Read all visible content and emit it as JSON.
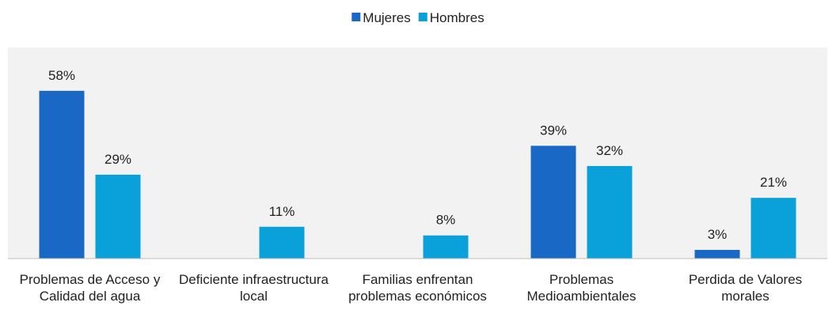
{
  "chart_data": {
    "type": "bar",
    "categories": [
      "Problemas de Acceso y Calidad del agua",
      "Deficiente infraestructura local",
      "Familias enfrentan problemas económicos",
      "Problemas Medioambientales",
      "Perdida de Valores morales"
    ],
    "series": [
      {
        "name": "Mujeres",
        "color": "#1a68c6",
        "values": [
          58,
          null,
          null,
          39,
          3
        ],
        "value_labels": [
          "58%",
          null,
          null,
          "39%",
          "3%"
        ]
      },
      {
        "name": "Hombres",
        "color": "#0aa0da",
        "values": [
          29,
          11,
          8,
          32,
          21
        ],
        "value_labels": [
          "29%",
          "11%",
          "8%",
          "32%",
          "21%"
        ]
      }
    ],
    "ylim": [
      0,
      73
    ],
    "legend": "top"
  }
}
